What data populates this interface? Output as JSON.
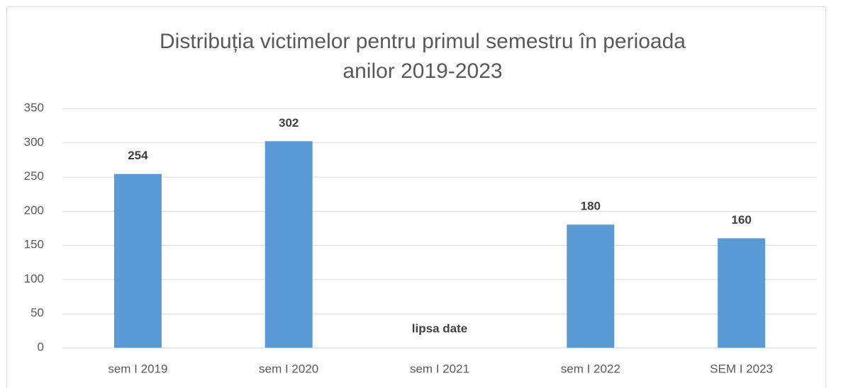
{
  "chart_data": {
    "type": "bar",
    "title": [
      "Distribuția victimelor pentru primul semestru în perioada",
      "anilor 2019-2023"
    ],
    "categories": [
      "sem I 2019",
      "sem I 2020",
      "sem I 2021",
      "sem I 2022",
      "SEM I 2023"
    ],
    "values": [
      254,
      302,
      null,
      180,
      160
    ],
    "annotation": "lipsa date",
    "color": "#5b9bd5",
    "ylim": [
      0,
      350
    ],
    "yticks": [
      0,
      50,
      100,
      150,
      200,
      250,
      300,
      350
    ],
    "grid": true
  }
}
